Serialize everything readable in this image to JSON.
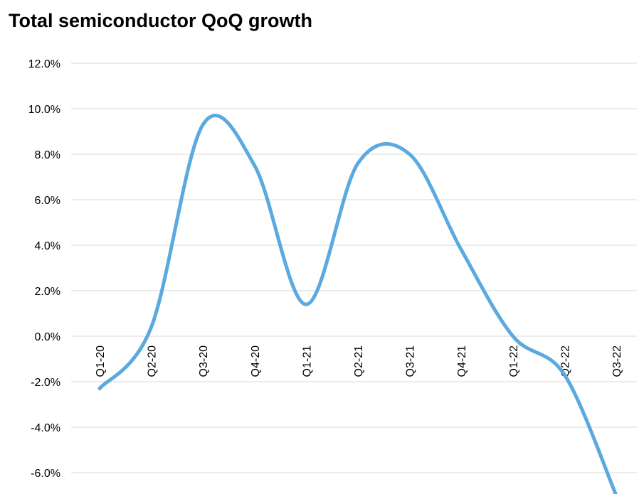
{
  "chart_data": {
    "type": "line",
    "title": "Total semiconductor QoQ growth",
    "categories": [
      "Q1-20",
      "Q2-20",
      "Q3-20",
      "Q4-20",
      "Q1-21",
      "Q2-21",
      "Q3-21",
      "Q4-21",
      "Q1-22",
      "Q2-22",
      "Q3-22"
    ],
    "series": [
      {
        "values": [
          -2.3,
          0.4,
          9.3,
          7.5,
          1.4,
          7.6,
          8.0,
          3.8,
          0.0,
          -1.7,
          -7.0
        ]
      }
    ],
    "y_ticks": [
      "12.0%",
      "10.0%",
      "8.0%",
      "6.0%",
      "4.0%",
      "2.0%",
      "0.0%",
      "-2.0%",
      "-4.0%",
      "-6.0%"
    ],
    "ylim": [
      -7,
      12
    ],
    "smoothed": true,
    "grid": true,
    "legend": "none",
    "colors": {
      "line": "#5aaae0",
      "grid": "#d9d9d9"
    }
  }
}
